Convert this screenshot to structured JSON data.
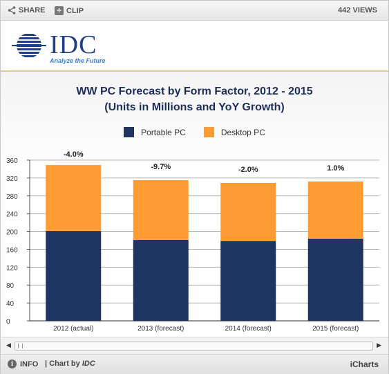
{
  "toolbar": {
    "share_label": "SHARE",
    "clip_label": "CLIP",
    "views_label": "442 VIEWS",
    "share_icon": "share-icon",
    "clip_icon": "plus-icon"
  },
  "brand": {
    "logo_text": "IDC",
    "tagline": "Analyze the Future",
    "logo_color": "#1f3f86",
    "tagline_color": "#3a7fd6"
  },
  "footer": {
    "info_label": "INFO",
    "chart_by_prefix": "| Chart by",
    "chart_by_source": "IDC",
    "brand_label": "iCharts"
  },
  "chart_data": {
    "type": "bar",
    "stacked": true,
    "title": "WW PC Forecast by Form Factor, 2012 - 2015",
    "subtitle": "(Units in Millions and YoY Growth)",
    "xlabel": "",
    "ylabel": "",
    "categories": [
      "2012 (actual)",
      "2013 (forecast)",
      "2014 (forecast)",
      "2015 (forecast)"
    ],
    "series": [
      {
        "name": "Portable PC",
        "color": "#1e3461",
        "values": [
          201,
          181,
          179,
          184
        ]
      },
      {
        "name": "Desktop PC",
        "color": "#ff9b33",
        "values": [
          148,
          134,
          130,
          128
        ]
      }
    ],
    "annotations": [
      "-4.0%",
      "-9.7%",
      "-2.0%",
      "1.0%"
    ],
    "yticks": [
      0,
      40,
      80,
      120,
      160,
      200,
      240,
      280,
      320,
      360
    ],
    "ylim": [
      0,
      360
    ],
    "grid": true,
    "legend_position": "top-center"
  }
}
